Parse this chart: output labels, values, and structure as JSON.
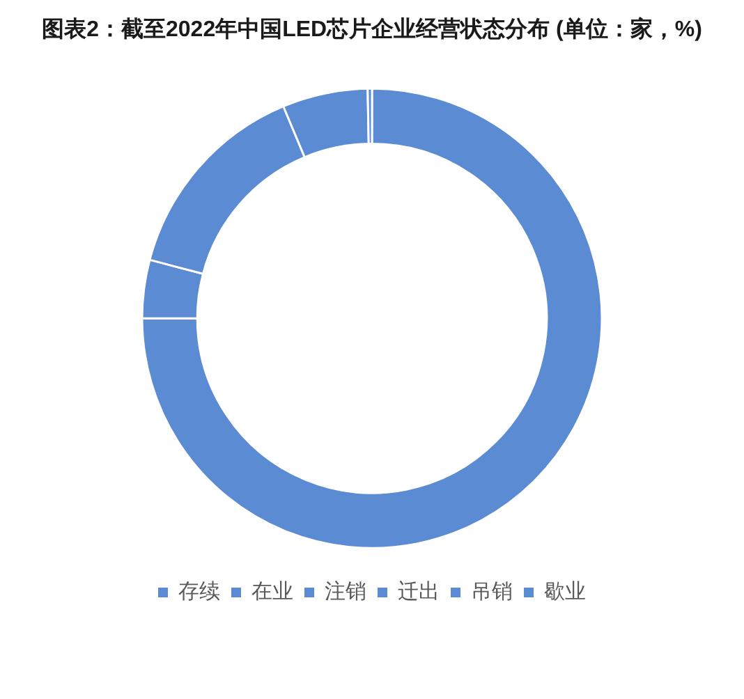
{
  "chart_data": {
    "type": "donut",
    "title": "图表2：截至2022年中国LED芯片企业经营状态分布 (单位：家，%)",
    "categories": [
      "存续",
      "在业",
      "注销",
      "迁出",
      "吊销",
      "歇业"
    ],
    "values": [
      75,
      4.1,
      14.6,
      6,
      0.3,
      0
    ],
    "colors": [
      "#5b8bd3",
      "#5b8bd3",
      "#5b8bd3",
      "#5b8bd3",
      "#5b8bd3",
      "#5b8bd3"
    ],
    "legend": "bottom"
  }
}
